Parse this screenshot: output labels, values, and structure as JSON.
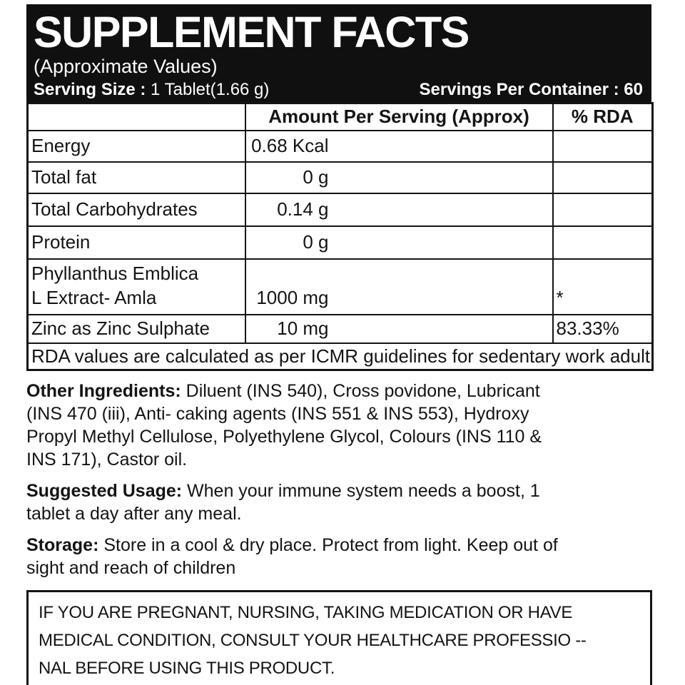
{
  "header": {
    "title": "SUPPLEMENT FACTS",
    "subtitle": "(Approximate Values)",
    "serving_size_label": "Serving Size :",
    "serving_size_value": " 1 Tablet(1.66 g)",
    "servings_per_container": "Servings Per Container : 60"
  },
  "table": {
    "columns": [
      "",
      "Amount Per Serving (Approx)",
      "% RDA"
    ],
    "rows": [
      {
        "name": "Energy",
        "amount": "0.68 Kcal",
        "rda": ""
      },
      {
        "name": "Total fat",
        "amount": "0 g",
        "rda": ""
      },
      {
        "name": "Total Carbohydrates",
        "amount": "0.14 g",
        "rda": ""
      },
      {
        "name": "Protein",
        "amount": "0 g",
        "rda": ""
      },
      {
        "name_lines": [
          "Phyllanthus Emblica",
          "L Extract- Amla"
        ],
        "amount": "1000 mg",
        "rda": "*"
      },
      {
        "name": "Zinc as Zinc Sulphate",
        "amount": "10 mg",
        "rda": "83.33%"
      }
    ],
    "footnote": "RDA values are calculated as per ICMR guidelines for sedentary work adult."
  },
  "sections": {
    "other_ingredients": {
      "lead": "Other Ingredients:",
      "lines": [
        " Diluent (INS 540), Cross povidone, Lubricant",
        "(INS 470 (iii), Anti- caking agents (INS 551 & INS  553), Hydroxy",
        "Propyl Methyl Cellulose, Polyethylene Glycol, Colours (INS 110 &",
        "INS 171), Castor oil."
      ]
    },
    "suggested_usage": {
      "lead": "Suggested Usage:",
      "lines": [
        " When your immune system needs a boost, 1",
        "tablet a day after any meal."
      ]
    },
    "storage": {
      "lead": "Storage:",
      "lines": [
        " Store in a cool & dry place. Protect from light. Keep out of",
        "sight and reach of children"
      ]
    }
  },
  "warning": {
    "lines": [
      "IF YOU ARE PREGNANT, NURSING, TAKING MEDICATION OR HAVE",
      "MEDICAL CONDITION, CONSULT YOUR HEALTHCARE PROFESSIO --",
      "NAL BEFORE USING THIS PRODUCT."
    ]
  },
  "colors": {
    "header_bg": "#101010",
    "header_text": "#ffffff",
    "text": "#141414",
    "border": "#141414",
    "background": "#ffffff"
  }
}
